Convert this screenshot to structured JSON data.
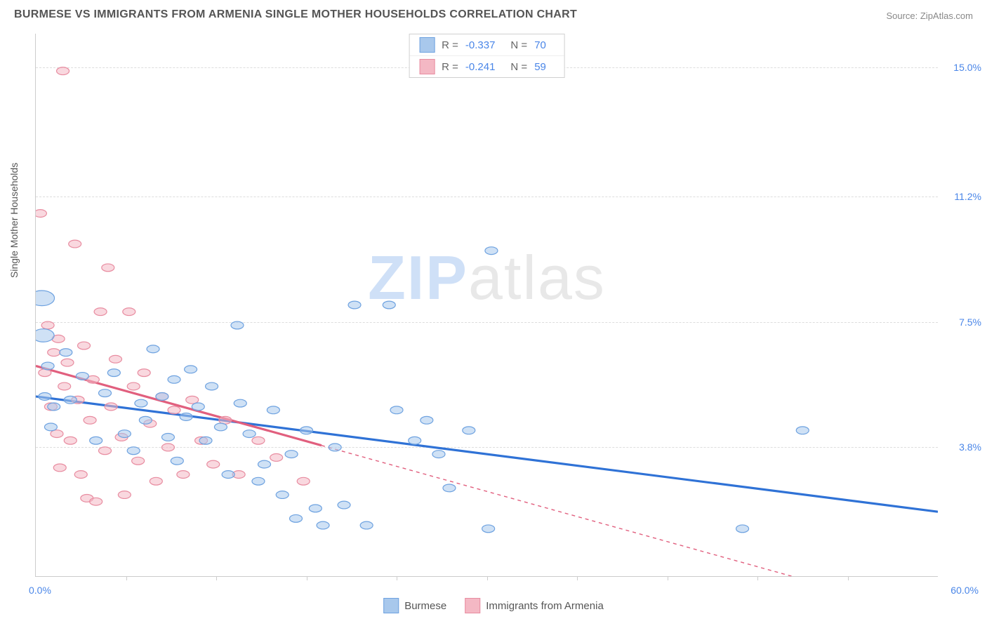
{
  "header": {
    "title": "BURMESE VS IMMIGRANTS FROM ARMENIA SINGLE MOTHER HOUSEHOLDS CORRELATION CHART",
    "source_prefix": "Source: ",
    "source_name": "ZipAtlas.com"
  },
  "watermark": {
    "part1": "ZIP",
    "part2": "atlas"
  },
  "chart": {
    "type": "scatter",
    "y_axis_label": "Single Mother Households",
    "background_color": "#ffffff",
    "grid_color": "#dddddd",
    "axis_color": "#cccccc",
    "xlim": [
      0,
      60
    ],
    "ylim": [
      0,
      16
    ],
    "x_min_label": "0.0%",
    "x_max_label": "60.0%",
    "y_ticks": [
      {
        "v": 3.8,
        "label": "3.8%"
      },
      {
        "v": 7.5,
        "label": "7.5%"
      },
      {
        "v": 11.2,
        "label": "11.2%"
      },
      {
        "v": 15.0,
        "label": "15.0%"
      }
    ],
    "x_ticks": [
      6,
      12,
      18,
      24,
      30,
      36,
      42,
      48,
      54
    ],
    "series": [
      {
        "name": "Burmese",
        "label": "Burmese",
        "fill_color": "#a8c8ec",
        "stroke_color": "#6ea2e0",
        "line_color": "#2f72d6",
        "R": "-0.337",
        "N": "70",
        "trend": {
          "x1": 0,
          "y1": 5.3,
          "x2": 60,
          "y2": 1.9
        },
        "trend_extent_x": 60,
        "points": [
          {
            "x": 0.4,
            "y": 8.2,
            "r": 14
          },
          {
            "x": 0.5,
            "y": 7.1,
            "r": 12
          },
          {
            "x": 0.6,
            "y": 5.3,
            "r": 7
          },
          {
            "x": 0.8,
            "y": 6.2,
            "r": 7
          },
          {
            "x": 1.2,
            "y": 5.0,
            "r": 7
          },
          {
            "x": 1.0,
            "y": 4.4,
            "r": 7
          },
          {
            "x": 2.0,
            "y": 6.6,
            "r": 7
          },
          {
            "x": 2.3,
            "y": 5.2,
            "r": 7
          },
          {
            "x": 3.1,
            "y": 5.9,
            "r": 7
          },
          {
            "x": 4.0,
            "y": 4.0,
            "r": 7
          },
          {
            "x": 4.6,
            "y": 5.4,
            "r": 7
          },
          {
            "x": 5.2,
            "y": 6.0,
            "r": 7
          },
          {
            "x": 5.9,
            "y": 4.2,
            "r": 7
          },
          {
            "x": 6.5,
            "y": 3.7,
            "r": 7
          },
          {
            "x": 7.0,
            "y": 5.1,
            "r": 7
          },
          {
            "x": 7.3,
            "y": 4.6,
            "r": 7
          },
          {
            "x": 7.8,
            "y": 6.7,
            "r": 7
          },
          {
            "x": 8.4,
            "y": 5.3,
            "r": 7
          },
          {
            "x": 8.8,
            "y": 4.1,
            "r": 7
          },
          {
            "x": 9.2,
            "y": 5.8,
            "r": 7
          },
          {
            "x": 9.4,
            "y": 3.4,
            "r": 7
          },
          {
            "x": 10.0,
            "y": 4.7,
            "r": 7
          },
          {
            "x": 10.3,
            "y": 6.1,
            "r": 7
          },
          {
            "x": 10.8,
            "y": 5.0,
            "r": 7
          },
          {
            "x": 11.3,
            "y": 4.0,
            "r": 7
          },
          {
            "x": 11.7,
            "y": 5.6,
            "r": 7
          },
          {
            "x": 12.3,
            "y": 4.4,
            "r": 7
          },
          {
            "x": 12.8,
            "y": 3.0,
            "r": 7
          },
          {
            "x": 13.4,
            "y": 7.4,
            "r": 7
          },
          {
            "x": 13.6,
            "y": 5.1,
            "r": 7
          },
          {
            "x": 14.2,
            "y": 4.2,
            "r": 7
          },
          {
            "x": 14.8,
            "y": 2.8,
            "r": 7
          },
          {
            "x": 15.2,
            "y": 3.3,
            "r": 7
          },
          {
            "x": 15.8,
            "y": 4.9,
            "r": 7
          },
          {
            "x": 16.4,
            "y": 2.4,
            "r": 7
          },
          {
            "x": 17.0,
            "y": 3.6,
            "r": 7
          },
          {
            "x": 17.3,
            "y": 1.7,
            "r": 7
          },
          {
            "x": 18.0,
            "y": 4.3,
            "r": 7
          },
          {
            "x": 18.6,
            "y": 2.0,
            "r": 7
          },
          {
            "x": 19.1,
            "y": 1.5,
            "r": 7
          },
          {
            "x": 19.9,
            "y": 3.8,
            "r": 7
          },
          {
            "x": 20.5,
            "y": 2.1,
            "r": 7
          },
          {
            "x": 21.2,
            "y": 8.0,
            "r": 7
          },
          {
            "x": 22.0,
            "y": 1.5,
            "r": 7
          },
          {
            "x": 23.5,
            "y": 8.0,
            "r": 7
          },
          {
            "x": 24.0,
            "y": 4.9,
            "r": 7
          },
          {
            "x": 25.2,
            "y": 4.0,
            "r": 7
          },
          {
            "x": 26.0,
            "y": 4.6,
            "r": 7
          },
          {
            "x": 26.8,
            "y": 3.6,
            "r": 7
          },
          {
            "x": 27.5,
            "y": 2.6,
            "r": 7
          },
          {
            "x": 28.8,
            "y": 4.3,
            "r": 7
          },
          {
            "x": 30.1,
            "y": 1.4,
            "r": 7
          },
          {
            "x": 30.3,
            "y": 9.6,
            "r": 7
          },
          {
            "x": 51.0,
            "y": 4.3,
            "r": 7
          },
          {
            "x": 47.0,
            "y": 1.4,
            "r": 7
          }
        ]
      },
      {
        "name": "Immigrants from Armenia",
        "label": "Immigrants from Armenia",
        "fill_color": "#f4b8c4",
        "stroke_color": "#e88ca0",
        "line_color": "#e15f7e",
        "R": "-0.241",
        "N": "59",
        "trend": {
          "x1": 0,
          "y1": 6.2,
          "x2": 60,
          "y2": -1.2
        },
        "trend_extent_x": 19,
        "points": [
          {
            "x": 0.3,
            "y": 10.7,
            "r": 7
          },
          {
            "x": 0.6,
            "y": 6.0,
            "r": 7
          },
          {
            "x": 0.8,
            "y": 7.4,
            "r": 7
          },
          {
            "x": 1.0,
            "y": 5.0,
            "r": 7
          },
          {
            "x": 1.2,
            "y": 6.6,
            "r": 7
          },
          {
            "x": 1.4,
            "y": 4.2,
            "r": 7
          },
          {
            "x": 1.5,
            "y": 7.0,
            "r": 7
          },
          {
            "x": 1.6,
            "y": 3.2,
            "r": 7
          },
          {
            "x": 1.8,
            "y": 14.9,
            "r": 7
          },
          {
            "x": 1.9,
            "y": 5.6,
            "r": 7
          },
          {
            "x": 2.1,
            "y": 6.3,
            "r": 7
          },
          {
            "x": 2.3,
            "y": 4.0,
            "r": 7
          },
          {
            "x": 2.6,
            "y": 9.8,
            "r": 7
          },
          {
            "x": 2.8,
            "y": 5.2,
            "r": 7
          },
          {
            "x": 3.0,
            "y": 3.0,
            "r": 7
          },
          {
            "x": 3.2,
            "y": 6.8,
            "r": 7
          },
          {
            "x": 3.4,
            "y": 2.3,
            "r": 7
          },
          {
            "x": 3.6,
            "y": 4.6,
            "r": 7
          },
          {
            "x": 3.8,
            "y": 5.8,
            "r": 7
          },
          {
            "x": 4.0,
            "y": 2.2,
            "r": 7
          },
          {
            "x": 4.3,
            "y": 7.8,
            "r": 7
          },
          {
            "x": 4.6,
            "y": 3.7,
            "r": 7
          },
          {
            "x": 4.8,
            "y": 9.1,
            "r": 7
          },
          {
            "x": 5.0,
            "y": 5.0,
            "r": 7
          },
          {
            "x": 5.3,
            "y": 6.4,
            "r": 7
          },
          {
            "x": 5.7,
            "y": 4.1,
            "r": 7
          },
          {
            "x": 5.9,
            "y": 2.4,
            "r": 7
          },
          {
            "x": 6.2,
            "y": 7.8,
            "r": 7
          },
          {
            "x": 6.5,
            "y": 5.6,
            "r": 7
          },
          {
            "x": 6.8,
            "y": 3.4,
            "r": 7
          },
          {
            "x": 7.2,
            "y": 6.0,
            "r": 7
          },
          {
            "x": 7.6,
            "y": 4.5,
            "r": 7
          },
          {
            "x": 8.0,
            "y": 2.8,
            "r": 7
          },
          {
            "x": 8.4,
            "y": 5.3,
            "r": 7
          },
          {
            "x": 8.8,
            "y": 3.8,
            "r": 7
          },
          {
            "x": 9.2,
            "y": 4.9,
            "r": 7
          },
          {
            "x": 9.8,
            "y": 3.0,
            "r": 7
          },
          {
            "x": 10.4,
            "y": 5.2,
            "r": 7
          },
          {
            "x": 11.0,
            "y": 4.0,
            "r": 7
          },
          {
            "x": 11.8,
            "y": 3.3,
            "r": 7
          },
          {
            "x": 12.6,
            "y": 4.6,
            "r": 7
          },
          {
            "x": 13.5,
            "y": 3.0,
            "r": 7
          },
          {
            "x": 14.8,
            "y": 4.0,
            "r": 7
          },
          {
            "x": 16.0,
            "y": 3.5,
            "r": 7
          },
          {
            "x": 17.8,
            "y": 2.8,
            "r": 7
          }
        ]
      }
    ]
  },
  "legend": {
    "R_label": "R =",
    "N_label": "N ="
  }
}
